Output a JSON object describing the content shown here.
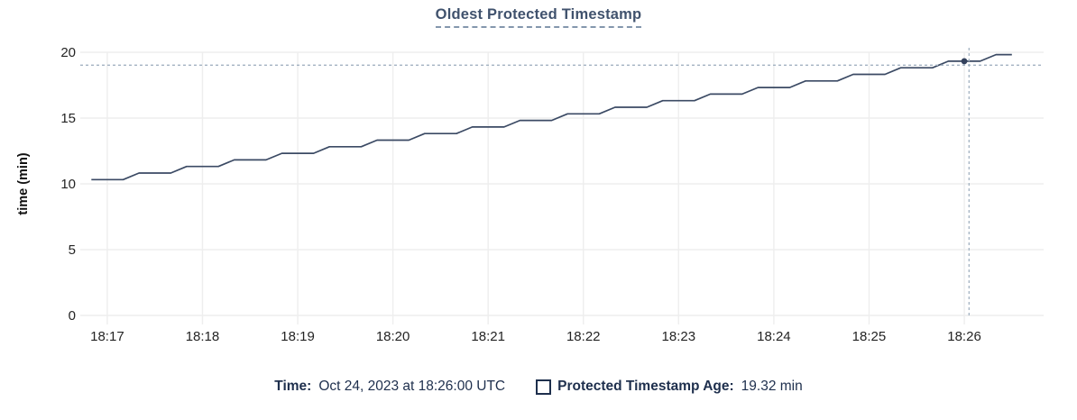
{
  "title": "Oldest Protected Timestamp",
  "legend": {
    "time_label": "Time:",
    "time_value": "Oct 24, 2023 at 18:26:00 UTC",
    "series_label": "Protected Timestamp Age:",
    "series_value": "19.32 min"
  },
  "chart_data": {
    "type": "line",
    "title": "Oldest Protected Timestamp",
    "xlabel": "",
    "ylabel": "time (min)",
    "ylim": [
      0,
      20
    ],
    "y_ticks": [
      0,
      5,
      10,
      15,
      20
    ],
    "x_domain": [
      "18:16:43",
      "18:26:50"
    ],
    "x_ticks": [
      "18:17",
      "18:18",
      "18:19",
      "18:20",
      "18:21",
      "18:22",
      "18:23",
      "18:24",
      "18:25",
      "18:26"
    ],
    "grid": true,
    "legend_position": "bottom",
    "series": [
      {
        "name": "Protected Timestamp Age",
        "unit": "min",
        "points": [
          [
            "18:16:50",
            10.32
          ],
          [
            "18:17:00",
            10.32
          ],
          [
            "18:17:10",
            10.32
          ],
          [
            "18:17:20",
            10.82
          ],
          [
            "18:17:30",
            10.82
          ],
          [
            "18:17:40",
            10.82
          ],
          [
            "18:17:50",
            11.32
          ],
          [
            "18:18:00",
            11.32
          ],
          [
            "18:18:10",
            11.32
          ],
          [
            "18:18:20",
            11.82
          ],
          [
            "18:18:30",
            11.82
          ],
          [
            "18:18:40",
            11.82
          ],
          [
            "18:18:50",
            12.32
          ],
          [
            "18:19:00",
            12.32
          ],
          [
            "18:19:10",
            12.32
          ],
          [
            "18:19:20",
            12.82
          ],
          [
            "18:19:30",
            12.82
          ],
          [
            "18:19:40",
            12.82
          ],
          [
            "18:19:50",
            13.32
          ],
          [
            "18:20:00",
            13.32
          ],
          [
            "18:20:10",
            13.32
          ],
          [
            "18:20:20",
            13.82
          ],
          [
            "18:20:30",
            13.82
          ],
          [
            "18:20:40",
            13.82
          ],
          [
            "18:20:50",
            14.32
          ],
          [
            "18:21:00",
            14.32
          ],
          [
            "18:21:10",
            14.32
          ],
          [
            "18:21:20",
            14.82
          ],
          [
            "18:21:30",
            14.82
          ],
          [
            "18:21:40",
            14.82
          ],
          [
            "18:21:50",
            15.32
          ],
          [
            "18:22:00",
            15.32
          ],
          [
            "18:22:10",
            15.32
          ],
          [
            "18:22:20",
            15.82
          ],
          [
            "18:22:30",
            15.82
          ],
          [
            "18:22:40",
            15.82
          ],
          [
            "18:22:50",
            16.32
          ],
          [
            "18:23:00",
            16.32
          ],
          [
            "18:23:10",
            16.32
          ],
          [
            "18:23:20",
            16.82
          ],
          [
            "18:23:30",
            16.82
          ],
          [
            "18:23:40",
            16.82
          ],
          [
            "18:23:50",
            17.32
          ],
          [
            "18:24:00",
            17.32
          ],
          [
            "18:24:10",
            17.32
          ],
          [
            "18:24:20",
            17.82
          ],
          [
            "18:24:30",
            17.82
          ],
          [
            "18:24:40",
            17.82
          ],
          [
            "18:24:50",
            18.32
          ],
          [
            "18:25:00",
            18.32
          ],
          [
            "18:25:10",
            18.32
          ],
          [
            "18:25:20",
            18.82
          ],
          [
            "18:25:30",
            18.82
          ],
          [
            "18:25:40",
            18.82
          ],
          [
            "18:25:50",
            19.32
          ],
          [
            "18:26:00",
            19.32
          ],
          [
            "18:26:10",
            19.32
          ],
          [
            "18:26:20",
            19.82
          ],
          [
            "18:26:30",
            19.82
          ]
        ]
      }
    ],
    "hover": {
      "point": {
        "time": "18:26:00",
        "value": 19.32
      },
      "cursor": {
        "time": "18:26:03",
        "value": 19.02
      }
    },
    "colors": {
      "line": "#3b4a64",
      "point": "#33415c",
      "crosshair": "#a3b2c1",
      "grid": "#eeeeee",
      "tick_text": "#242424",
      "axis_title_text": "#111111",
      "title": "#40526d",
      "legend_text": "#1e2f4d"
    }
  }
}
